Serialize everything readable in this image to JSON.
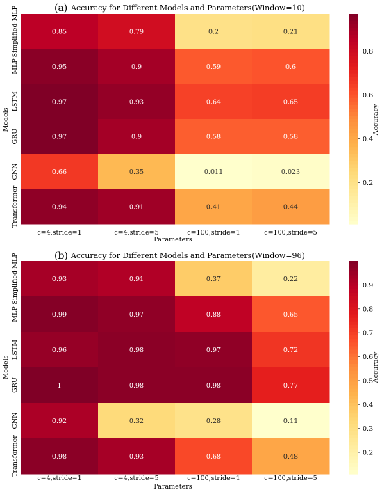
{
  "chart_data": [
    {
      "type": "heatmap",
      "panel": "(a)",
      "title": "Accuracy for Different Models and Parameters(Window=10)",
      "xlabel": "Parameters",
      "ylabel": "Models",
      "x": [
        "c=4,stride=1",
        "c=4,stride=5",
        "c=100,stride=1",
        "c=100,stride=5"
      ],
      "y": [
        "Simplified-MLP",
        "MLP",
        "LSTM",
        "GRU",
        "CNN",
        "Transformer"
      ],
      "values": [
        [
          0.85,
          0.79,
          0.2,
          0.21
        ],
        [
          0.95,
          0.9,
          0.59,
          0.6
        ],
        [
          0.97,
          0.93,
          0.64,
          0.65
        ],
        [
          0.97,
          0.9,
          0.58,
          0.58
        ],
        [
          0.66,
          0.35,
          0.011,
          0.023
        ],
        [
          0.94,
          0.91,
          0.41,
          0.44
        ]
      ],
      "cell_labels": [
        [
          "0.85",
          "0.79",
          "0.2",
          "0.21"
        ],
        [
          "0.95",
          "0.9",
          "0.59",
          "0.6"
        ],
        [
          "0.97",
          "0.93",
          "0.64",
          "0.65"
        ],
        [
          "0.97",
          "0.9",
          "0.58",
          "0.58"
        ],
        [
          "0.66",
          "0.35",
          "0.011",
          "0.023"
        ],
        [
          "0.94",
          "0.91",
          "0.41",
          "0.44"
        ]
      ],
      "colormap": "YlOrRd",
      "colorbar": {
        "label": "Accuracy",
        "range": [
          0.011,
          0.97
        ],
        "ticks": [
          0.2,
          0.4,
          0.6,
          0.8
        ],
        "tick_labels": [
          "0.2",
          "0.4",
          "0.6",
          "0.8"
        ]
      }
    },
    {
      "type": "heatmap",
      "panel": "(b)",
      "title": "Accuracy for Different Models and Parameters(Window=96)",
      "xlabel": "Parameters",
      "ylabel": "Models",
      "x": [
        "c=4,stride=1",
        "c=4,stride=5",
        "c=100,stride=1",
        "c=100,stride=5"
      ],
      "y": [
        "Simplified-MLP",
        "MLP",
        "LSTM",
        "GRU",
        "CNN",
        "Transformer"
      ],
      "values": [
        [
          0.93,
          0.91,
          0.37,
          0.22
        ],
        [
          0.99,
          0.97,
          0.88,
          0.65
        ],
        [
          0.96,
          0.98,
          0.97,
          0.72
        ],
        [
          1.0,
          0.98,
          0.98,
          0.77
        ],
        [
          0.92,
          0.32,
          0.28,
          0.11
        ],
        [
          0.98,
          0.93,
          0.68,
          0.48
        ]
      ],
      "cell_labels": [
        [
          "0.93",
          "0.91",
          "0.37",
          "0.22"
        ],
        [
          "0.99",
          "0.97",
          "0.88",
          "0.65"
        ],
        [
          "0.96",
          "0.98",
          "0.97",
          "0.72"
        ],
        [
          "1",
          "0.98",
          "0.98",
          "0.77"
        ],
        [
          "0.92",
          "0.32",
          "0.28",
          "0.11"
        ],
        [
          "0.98",
          "0.93",
          "0.68",
          "0.48"
        ]
      ],
      "colormap": "YlOrRd",
      "colorbar": {
        "label": "Accuracy",
        "range": [
          0.11,
          1.0
        ],
        "ticks": [
          0.2,
          0.3,
          0.4,
          0.5,
          0.6,
          0.7,
          0.8,
          0.9
        ],
        "tick_labels": [
          "0.2",
          "0.3",
          "0.4",
          "0.5",
          "0.6",
          "0.7",
          "0.8",
          "0.9"
        ]
      }
    }
  ]
}
